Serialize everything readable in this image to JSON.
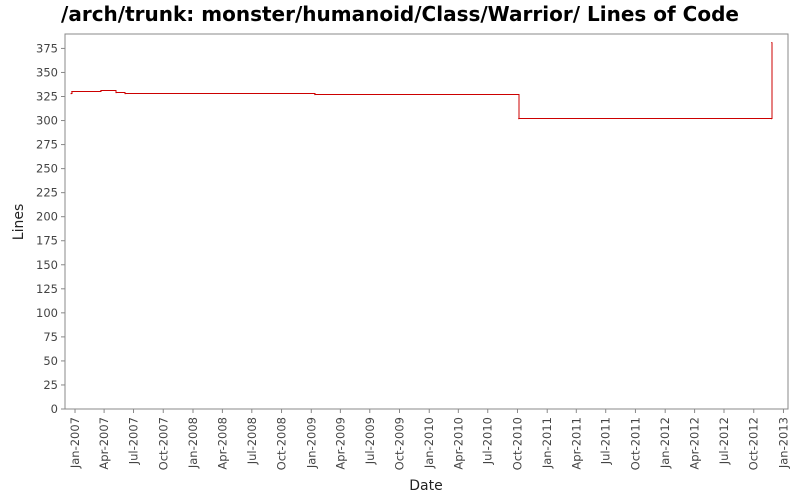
{
  "chart_data": {
    "type": "line",
    "title": "/arch/trunk: monster/humanoid/Class/Warrior/ Lines of Code",
    "xlabel": "Date",
    "ylabel": "Lines",
    "ylim": [
      0,
      390
    ],
    "xlim": [
      "2006-12-01",
      "2013-01-15"
    ],
    "y_ticks": [
      0,
      25,
      50,
      75,
      100,
      125,
      150,
      175,
      200,
      225,
      250,
      275,
      300,
      325,
      350,
      375
    ],
    "x_ticks": [
      {
        "date": "2007-01-01",
        "label": "Jan-2007"
      },
      {
        "date": "2007-04-01",
        "label": "Apr-2007"
      },
      {
        "date": "2007-07-01",
        "label": "Jul-2007"
      },
      {
        "date": "2007-10-01",
        "label": "Oct-2007"
      },
      {
        "date": "2008-01-01",
        "label": "Jan-2008"
      },
      {
        "date": "2008-04-01",
        "label": "Apr-2008"
      },
      {
        "date": "2008-07-01",
        "label": "Jul-2008"
      },
      {
        "date": "2008-10-01",
        "label": "Oct-2008"
      },
      {
        "date": "2009-01-01",
        "label": "Jan-2009"
      },
      {
        "date": "2009-04-01",
        "label": "Apr-2009"
      },
      {
        "date": "2009-07-01",
        "label": "Jul-2009"
      },
      {
        "date": "2009-10-01",
        "label": "Oct-2009"
      },
      {
        "date": "2010-01-01",
        "label": "Jan-2010"
      },
      {
        "date": "2010-04-01",
        "label": "Apr-2010"
      },
      {
        "date": "2010-07-01",
        "label": "Jul-2010"
      },
      {
        "date": "2010-10-01",
        "label": "Oct-2010"
      },
      {
        "date": "2011-01-01",
        "label": "Jan-2011"
      },
      {
        "date": "2011-04-01",
        "label": "Apr-2011"
      },
      {
        "date": "2011-07-01",
        "label": "Jul-2011"
      },
      {
        "date": "2011-10-01",
        "label": "Oct-2011"
      },
      {
        "date": "2012-01-01",
        "label": "Jan-2012"
      },
      {
        "date": "2012-04-01",
        "label": "Apr-2012"
      },
      {
        "date": "2012-07-01",
        "label": "Jul-2012"
      },
      {
        "date": "2012-10-01",
        "label": "Oct-2012"
      },
      {
        "date": "2013-01-01",
        "label": "Jan-2013"
      }
    ],
    "series": [
      {
        "step": true,
        "color": "#cc0000",
        "points": [
          {
            "x": "2006-12-20",
            "y": 328
          },
          {
            "x": "2006-12-22",
            "y": 330
          },
          {
            "x": "2007-03-22",
            "y": 331
          },
          {
            "x": "2007-05-08",
            "y": 329
          },
          {
            "x": "2007-06-05",
            "y": 328
          },
          {
            "x": "2009-01-12",
            "y": 327
          },
          {
            "x": "2010-10-05",
            "y": 302
          },
          {
            "x": "2012-11-25",
            "y": 302
          },
          {
            "x": "2012-11-26",
            "y": 381
          }
        ]
      }
    ],
    "grid": false,
    "legend": "none"
  }
}
